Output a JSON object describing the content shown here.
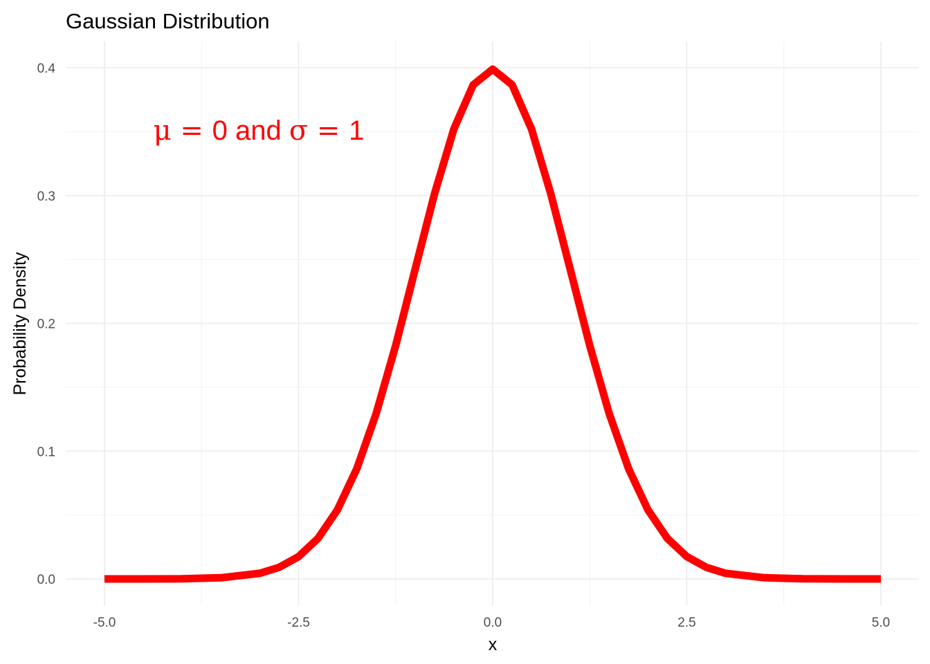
{
  "chart_data": {
    "type": "line",
    "title": "Gaussian Distribution",
    "xlabel": "x",
    "ylabel": "Probability Density",
    "xlim": [
      -5,
      5
    ],
    "ylim": [
      0,
      0.4
    ],
    "x_ticks": [
      -5.0,
      -2.5,
      0.0,
      2.5,
      5.0
    ],
    "x_tick_labels": [
      "-5.0",
      "-2.5",
      "0.0",
      "2.5",
      "5.0"
    ],
    "y_ticks": [
      0.0,
      0.1,
      0.2,
      0.3,
      0.4
    ],
    "y_tick_labels": [
      "0.0",
      "0.1",
      "0.2",
      "0.3",
      "0.4"
    ],
    "grid": true,
    "legend": "none",
    "series": [
      {
        "color": "#ff0000",
        "x": [
          -5.0,
          -4.5,
          -4.0,
          -3.5,
          -3.0,
          -2.75,
          -2.5,
          -2.25,
          -2.0,
          -1.75,
          -1.5,
          -1.25,
          -1.0,
          -0.75,
          -0.5,
          -0.25,
          0.0,
          0.25,
          0.5,
          0.75,
          1.0,
          1.25,
          1.5,
          1.75,
          2.0,
          2.25,
          2.5,
          2.75,
          3.0,
          3.5,
          4.0,
          4.5,
          5.0
        ],
        "y": [
          0.0,
          0.0,
          0.0001,
          0.0009,
          0.0044,
          0.0091,
          0.0175,
          0.0317,
          0.054,
          0.0863,
          0.1295,
          0.1826,
          0.242,
          0.3011,
          0.3521,
          0.3867,
          0.3989,
          0.3867,
          0.3521,
          0.3011,
          0.242,
          0.1826,
          0.1295,
          0.0863,
          0.054,
          0.0317,
          0.0175,
          0.0091,
          0.0044,
          0.0009,
          0.0001,
          0.0,
          0.0
        ]
      }
    ],
    "annotations": [
      {
        "text_parts": [
          "μ",
          " = ",
          "0 and ",
          "σ",
          " = ",
          "1"
        ],
        "x": -2.5,
        "y": 0.35,
        "color": "#ff0000"
      }
    ]
  }
}
